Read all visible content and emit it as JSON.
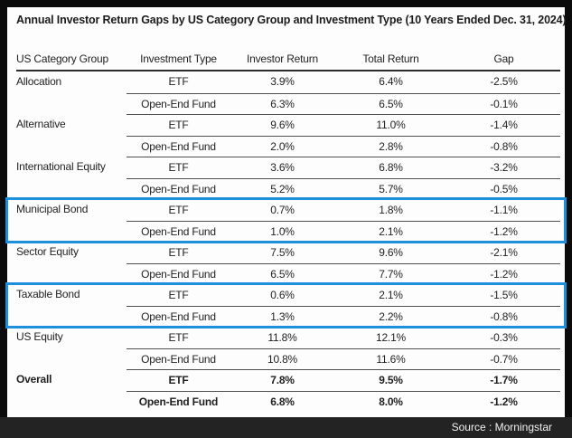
{
  "title": "Annual Investor Return Gaps by US Category Group and Investment Type (10 Years Ended Dec. 31, 2024)",
  "footer": {
    "source_label": "Source : Morningstar"
  },
  "colors": {
    "highlight_box_blue": "#1e8fdd",
    "frame_black": "#0b0b0b",
    "footer_bar_bg": "#232323",
    "panel_white": "#fdfdfd",
    "text_dark": "#1f1f1f"
  },
  "table": {
    "headers": [
      "US Category Group",
      "Investment Type",
      "Investor Return",
      "Total Return",
      "Gap"
    ],
    "groups": [
      {
        "category": "Allocation",
        "highlight": false,
        "bold": false,
        "rows": [
          {
            "type": "ETF",
            "investor_return": "3.9%",
            "total_return": "6.4%",
            "gap": "-2.5%"
          },
          {
            "type": "Open-End Fund",
            "investor_return": "6.3%",
            "total_return": "6.5%",
            "gap": "-0.1%"
          }
        ]
      },
      {
        "category": "Alternative",
        "highlight": false,
        "bold": false,
        "rows": [
          {
            "type": "ETF",
            "investor_return": "9.6%",
            "total_return": "11.0%",
            "gap": "-1.4%"
          },
          {
            "type": "Open-End Fund",
            "investor_return": "2.0%",
            "total_return": "2.8%",
            "gap": "-0.8%"
          }
        ]
      },
      {
        "category": "International Equity",
        "highlight": false,
        "bold": false,
        "rows": [
          {
            "type": "ETF",
            "investor_return": "3.6%",
            "total_return": "6.8%",
            "gap": "-3.2%"
          },
          {
            "type": "Open-End Fund",
            "investor_return": "5.2%",
            "total_return": "5.7%",
            "gap": "-0.5%"
          }
        ]
      },
      {
        "category": "Municipal Bond",
        "highlight": true,
        "bold": false,
        "rows": [
          {
            "type": "ETF",
            "investor_return": "0.7%",
            "total_return": "1.8%",
            "gap": "-1.1%"
          },
          {
            "type": "Open-End Fund",
            "investor_return": "1.0%",
            "total_return": "2.1%",
            "gap": "-1.2%"
          }
        ]
      },
      {
        "category": "Sector Equity",
        "highlight": false,
        "bold": false,
        "rows": [
          {
            "type": "ETF",
            "investor_return": "7.5%",
            "total_return": "9.6%",
            "gap": "-2.1%"
          },
          {
            "type": "Open-End Fund",
            "investor_return": "6.5%",
            "total_return": "7.7%",
            "gap": "-1.2%"
          }
        ]
      },
      {
        "category": "Taxable Bond",
        "highlight": true,
        "bold": false,
        "rows": [
          {
            "type": "ETF",
            "investor_return": "0.6%",
            "total_return": "2.1%",
            "gap": "-1.5%"
          },
          {
            "type": "Open-End Fund",
            "investor_return": "1.3%",
            "total_return": "2.2%",
            "gap": "-0.8%"
          }
        ]
      },
      {
        "category": "US Equity",
        "highlight": false,
        "bold": false,
        "rows": [
          {
            "type": "ETF",
            "investor_return": "11.8%",
            "total_return": "12.1%",
            "gap": "-0.3%"
          },
          {
            "type": "Open-End Fund",
            "investor_return": "10.8%",
            "total_return": "11.6%",
            "gap": "-0.7%"
          }
        ]
      },
      {
        "category": "Overall",
        "highlight": false,
        "bold": true,
        "rows": [
          {
            "type": "ETF",
            "investor_return": "7.8%",
            "total_return": "9.5%",
            "gap": "-1.7%"
          },
          {
            "type": "Open-End Fund",
            "investor_return": "6.8%",
            "total_return": "8.0%",
            "gap": "-1.2%"
          }
        ]
      }
    ]
  },
  "chart_data": {
    "type": "table",
    "title": "Annual Investor Return Gaps by US Category Group and Investment Type (10 Years Ended Dec. 31, 2024)",
    "columns": [
      "US Category Group",
      "Investment Type",
      "Investor Return (%)",
      "Total Return (%)",
      "Gap (%)"
    ],
    "rows": [
      [
        "Allocation",
        "ETF",
        3.9,
        6.4,
        -2.5
      ],
      [
        "Allocation",
        "Open-End Fund",
        6.3,
        6.5,
        -0.1
      ],
      [
        "Alternative",
        "ETF",
        9.6,
        11.0,
        -1.4
      ],
      [
        "Alternative",
        "Open-End Fund",
        2.0,
        2.8,
        -0.8
      ],
      [
        "International Equity",
        "ETF",
        3.6,
        6.8,
        -3.2
      ],
      [
        "International Equity",
        "Open-End Fund",
        5.2,
        5.7,
        -0.5
      ],
      [
        "Municipal Bond",
        "ETF",
        0.7,
        1.8,
        -1.1
      ],
      [
        "Municipal Bond",
        "Open-End Fund",
        1.0,
        2.1,
        -1.2
      ],
      [
        "Sector Equity",
        "ETF",
        7.5,
        9.6,
        -2.1
      ],
      [
        "Sector Equity",
        "Open-End Fund",
        6.5,
        7.7,
        -1.2
      ],
      [
        "Taxable Bond",
        "ETF",
        0.6,
        2.1,
        -1.5
      ],
      [
        "Taxable Bond",
        "Open-End Fund",
        1.3,
        2.2,
        -0.8
      ],
      [
        "US Equity",
        "ETF",
        11.8,
        12.1,
        -0.3
      ],
      [
        "US Equity",
        "Open-End Fund",
        10.8,
        11.6,
        -0.7
      ],
      [
        "Overall",
        "ETF",
        7.8,
        9.5,
        -1.7
      ],
      [
        "Overall",
        "Open-End Fund",
        6.8,
        8.0,
        -1.2
      ]
    ],
    "units": "percent",
    "highlighted_categories": [
      "Municipal Bond",
      "Taxable Bond"
    ],
    "bold_categories": [
      "Overall"
    ],
    "source": "Morningstar"
  }
}
